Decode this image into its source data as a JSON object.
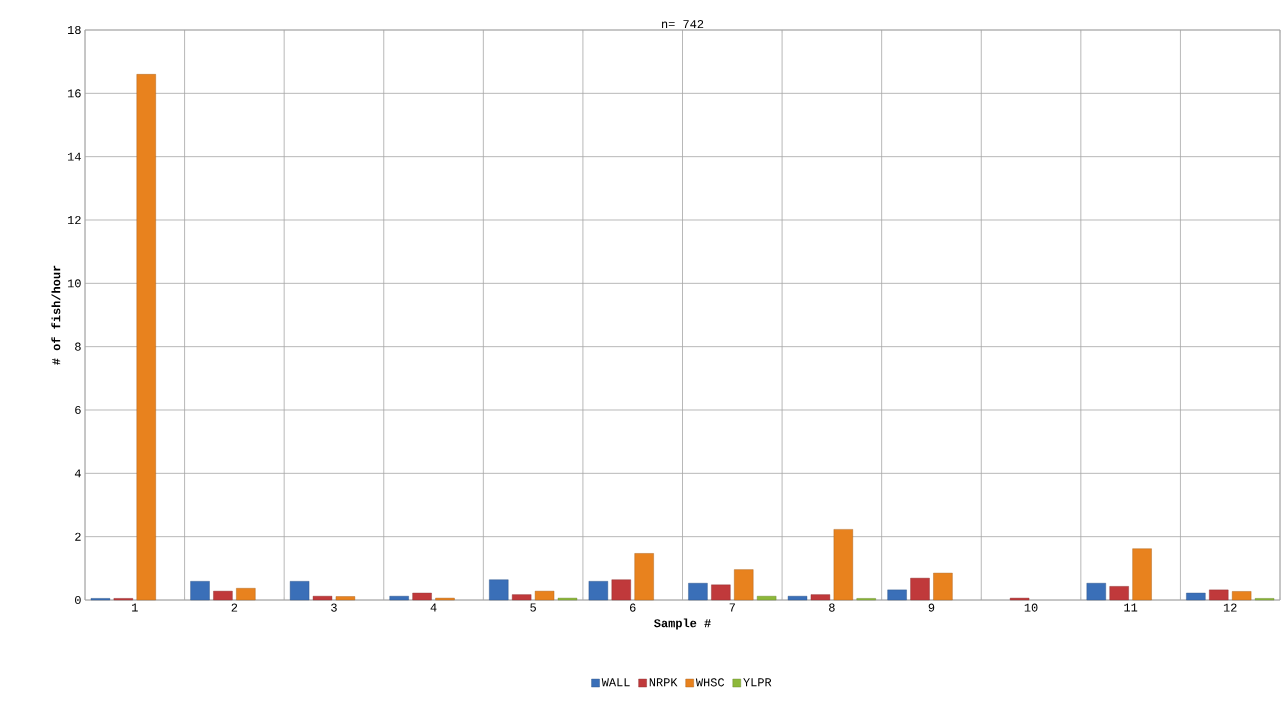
{
  "chart_data": {
    "type": "bar",
    "title": "n= 742",
    "xlabel": "Sample #",
    "ylabel": "# of fish/hour",
    "categories": [
      "1",
      "2",
      "3",
      "4",
      "5",
      "6",
      "7",
      "8",
      "9",
      "10",
      "11",
      "12"
    ],
    "series": [
      {
        "name": "WALL",
        "color": "#3a6fb8",
        "values": [
          0.05,
          0.59,
          0.59,
          0.12,
          0.64,
          0.59,
          0.53,
          0.12,
          0.32,
          null,
          0.53,
          0.22
        ]
      },
      {
        "name": "NRPK",
        "color": "#c0393b",
        "values": [
          0.05,
          0.28,
          0.12,
          0.22,
          0.17,
          0.64,
          0.48,
          0.17,
          0.69,
          0.06,
          0.43,
          0.32
        ]
      },
      {
        "name": "WHSC",
        "color": "#e8821e",
        "values": [
          16.6,
          0.37,
          0.11,
          0.06,
          0.28,
          1.47,
          0.96,
          2.23,
          0.85,
          null,
          1.62,
          0.27
        ]
      },
      {
        "name": "YLPR",
        "color": "#8db83a",
        "values": [
          null,
          null,
          null,
          null,
          0.06,
          null,
          0.12,
          0.05,
          null,
          null,
          null,
          0.05
        ]
      }
    ],
    "ylim": [
      0,
      18
    ],
    "yticks": [
      0,
      2,
      4,
      6,
      8,
      10,
      12,
      14,
      16,
      18
    ],
    "grid": true,
    "legend": "bottom"
  }
}
